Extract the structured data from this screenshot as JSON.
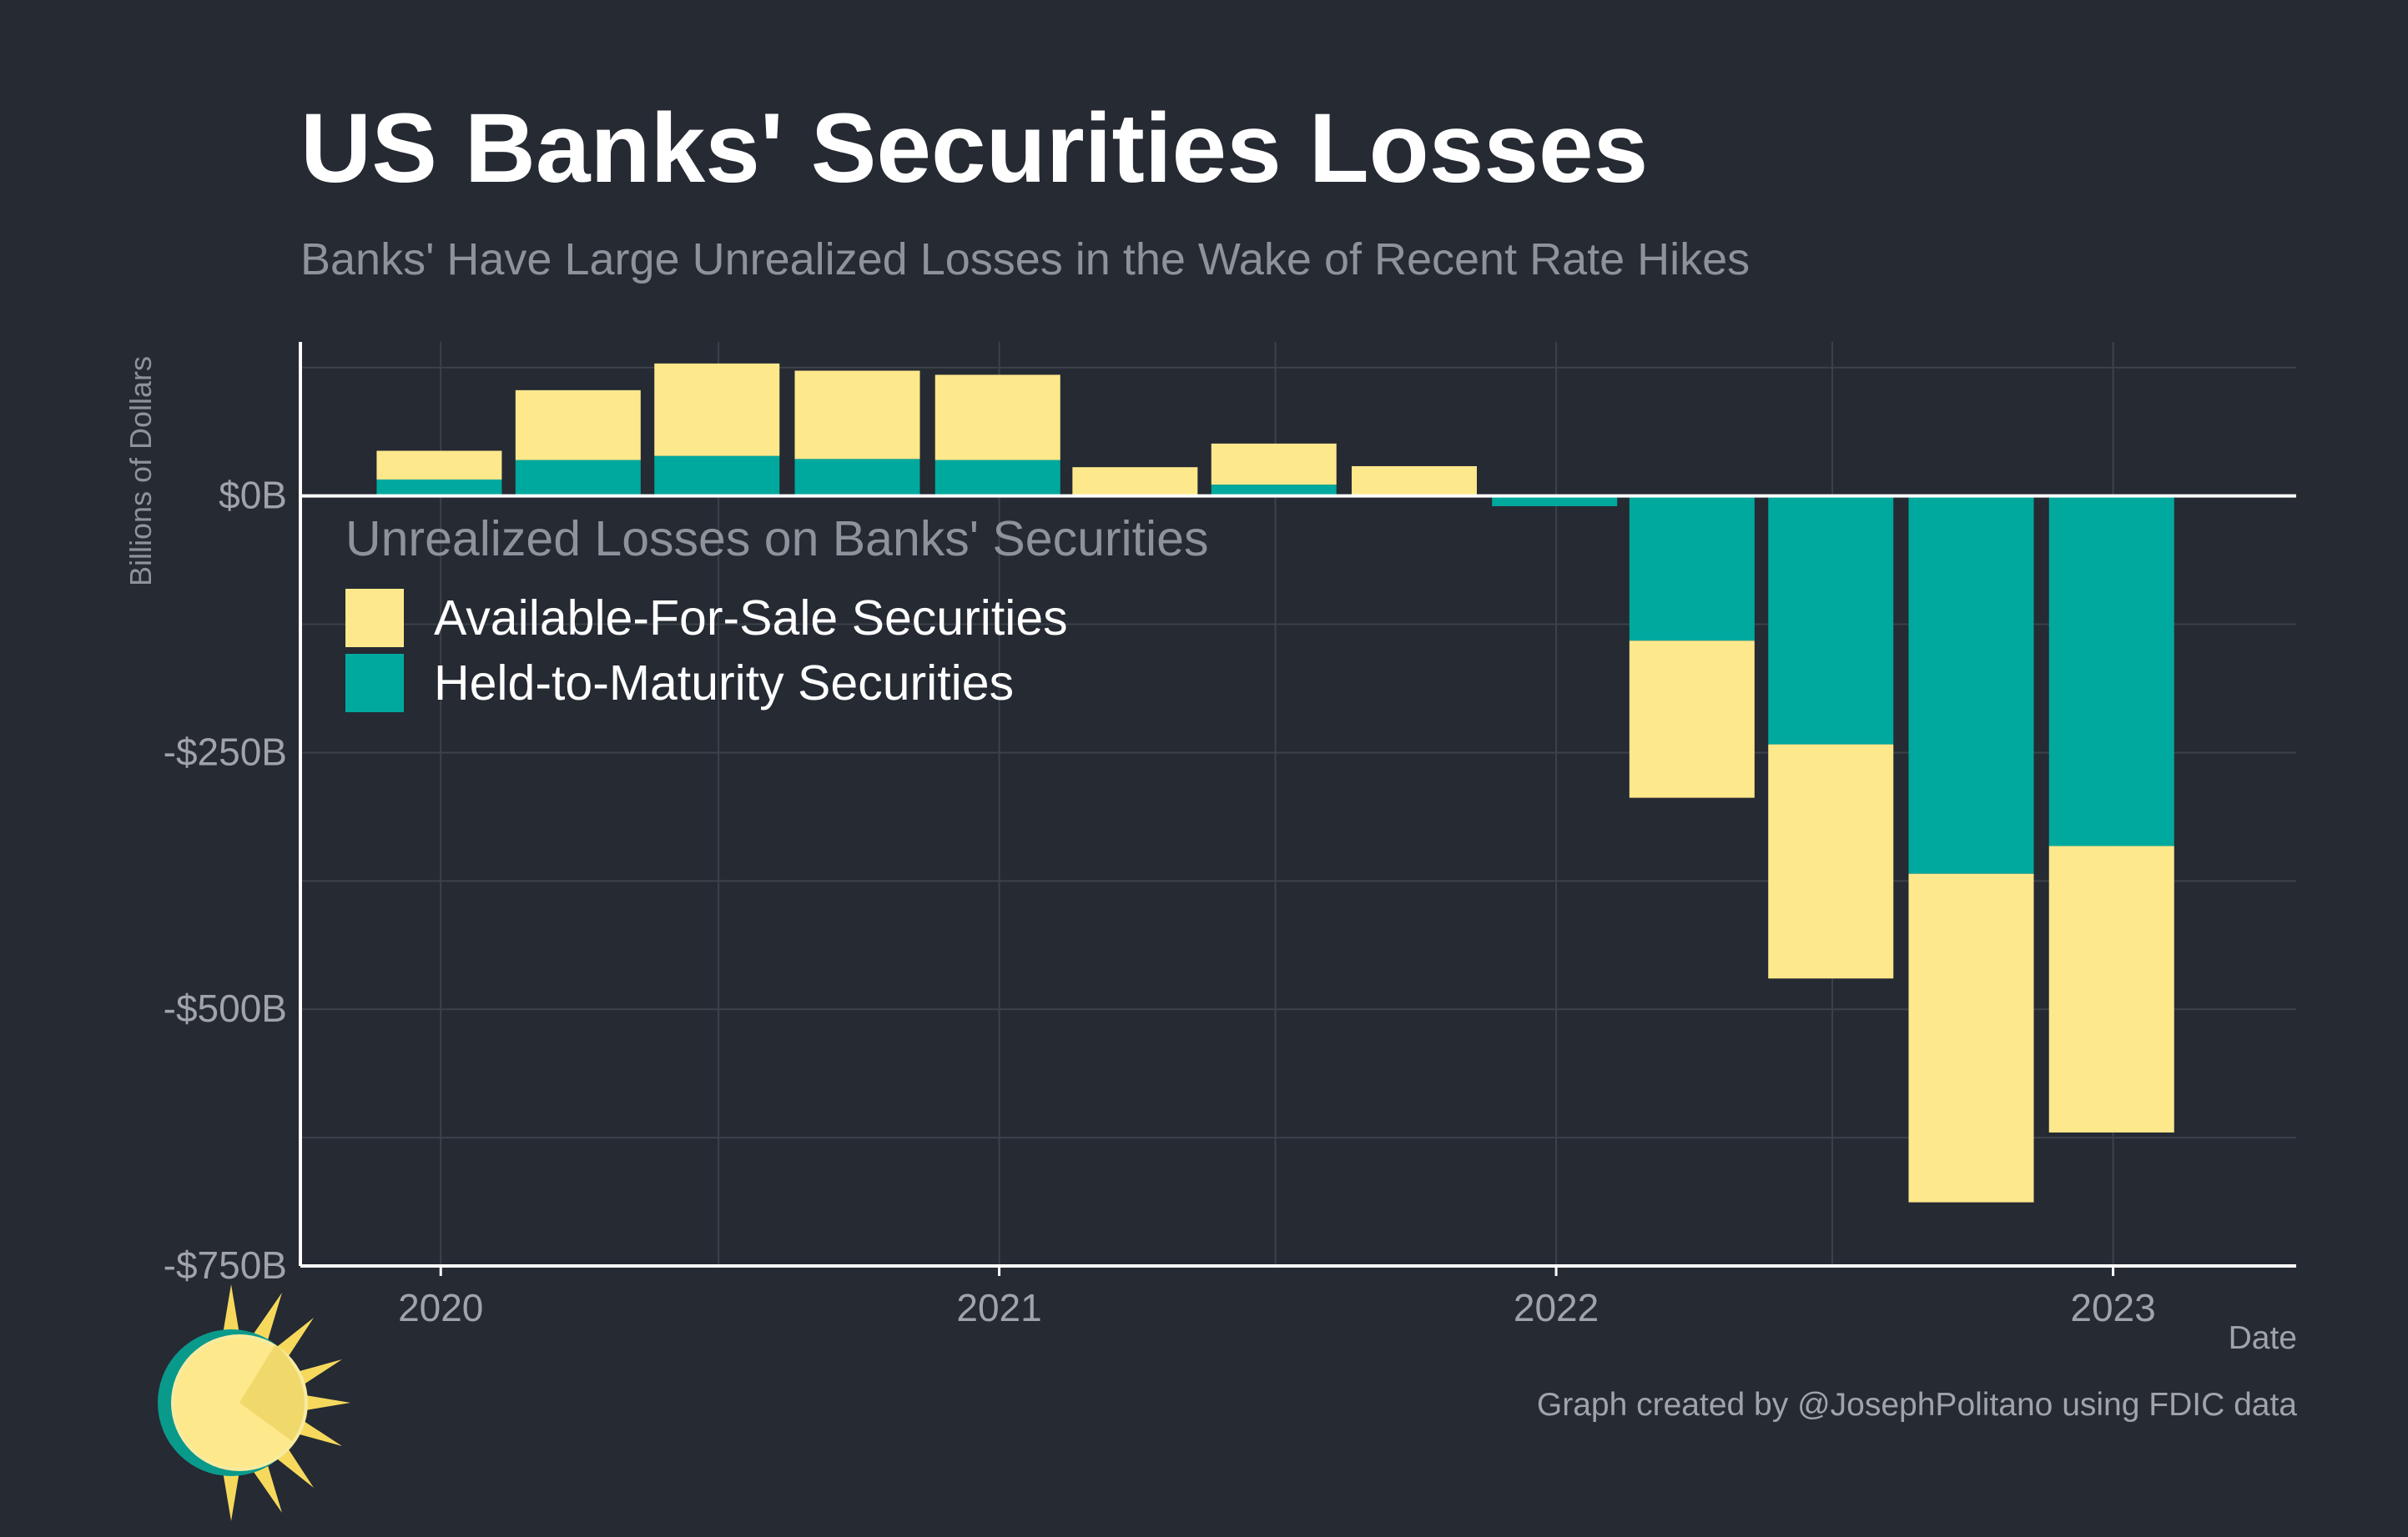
{
  "title": "US Banks' Securities Losses",
  "subtitle": "Banks' Have Large Unrealized Losses in the Wake of Recent Rate Hikes",
  "caption": "Graph created by @JosephPolitano using FDIC data",
  "legend": {
    "title": "Unrealized Losses on Banks' Securities",
    "items": [
      {
        "label": "Available-For-Sale Securities",
        "color": "#fee88c"
      },
      {
        "label": "Held-to-Maturity Securities",
        "color": "#00a99d"
      }
    ]
  },
  "colors": {
    "background": "#252a33",
    "afs": "#fee88c",
    "htm": "#00a99d",
    "grid": "#3c414a",
    "axis": "#ffffff",
    "tick_text": "#a0a4aa"
  },
  "logo_icon": "sun-logo-icon",
  "chart_data": {
    "type": "bar",
    "stacked": true,
    "title": "US Banks' Securities Losses",
    "subtitle": "Banks' Have Large Unrealized Losses in the Wake of Recent Rate Hikes",
    "xlabel": "Date",
    "ylabel": "Billions of Dollars",
    "ylim": [
      -750,
      150
    ],
    "yticks": [
      0,
      -250,
      -500,
      -750
    ],
    "ytick_labels": [
      "$0B",
      "-$250B",
      "-$500B",
      "-$750B"
    ],
    "xtick_labels": [
      "2020",
      "2021",
      "2022",
      "2023"
    ],
    "xtick_dates": [
      "2020-01-01",
      "2021-01-01",
      "2022-01-01",
      "2023-01-01"
    ],
    "categories": [
      "2019-12-31",
      "2020-03-31",
      "2020-06-30",
      "2020-09-30",
      "2020-12-31",
      "2021-03-31",
      "2021-06-30",
      "2021-09-30",
      "2021-12-31",
      "2022-03-31",
      "2022-06-30",
      "2022-09-30",
      "2022-12-31"
    ],
    "series": [
      {
        "name": "Held-to-Maturity Securities",
        "color": "#00a99d",
        "values": [
          16,
          35,
          39,
          36,
          35,
          0,
          11,
          1,
          -10,
          -141,
          -242,
          -368,
          -341
        ]
      },
      {
        "name": "Available-For-Sale Securities",
        "color": "#fee88c",
        "values": [
          28,
          68,
          90,
          86,
          83,
          28,
          40,
          28,
          0,
          -153,
          -228,
          -320,
          -279
        ]
      }
    ],
    "grid": true,
    "legend_position": "top-left"
  }
}
